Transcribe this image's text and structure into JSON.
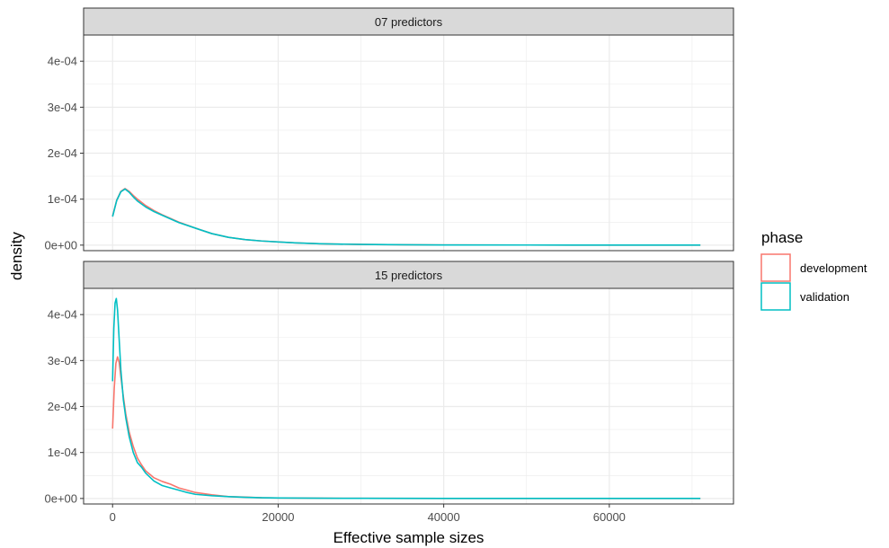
{
  "chart_data": {
    "type": "line",
    "xlabel": "Effective sample sizes",
    "ylabel": "density",
    "xlim": [
      -3500,
      75000
    ],
    "ylim": [
      -1.2e-05,
      0.000457
    ],
    "x_ticks": [
      0,
      20000,
      40000,
      60000
    ],
    "x_tick_labels": [
      "0",
      "20000",
      "40000",
      "60000"
    ],
    "y_ticks": [
      0,
      0.0001,
      0.0002,
      0.0003,
      0.0004
    ],
    "y_tick_labels": [
      "0e+00",
      "1e-04",
      "2e-04",
      "3e-04",
      "4e-04"
    ],
    "grid": true,
    "legend": {
      "title": "phase",
      "position": "right",
      "entries": [
        {
          "name": "development",
          "color": "#F8766D"
        },
        {
          "name": "validation",
          "color": "#00BFC4"
        }
      ]
    },
    "panels": [
      {
        "strip": "07 predictors",
        "series": [
          {
            "name": "development",
            "color": "#F8766D",
            "x": [
              0,
              500,
              1000,
              1500,
              2000,
              2500,
              3000,
              4000,
              5000,
              6000,
              8000,
              10000,
              12000,
              14000,
              16000,
              18000,
              20000,
              22000,
              25000,
              30000,
              35000,
              40000,
              50000,
              60000,
              71000
            ],
            "y": [
              6.3e-05,
              9.8e-05,
              0.000117,
              0.000123,
              0.000117,
              0.000108,
              0.0001,
              8.6e-05,
              7.5e-05,
              6.6e-05,
              5e-05,
              3.7e-05,
              2.5e-05,
              1.7e-05,
              1.2e-05,
              9e-06,
              7e-06,
              5e-06,
              3e-06,
              1.5e-06,
              8e-07,
              4e-07,
              2e-07,
              1e-07,
              1e-07
            ]
          },
          {
            "name": "validation",
            "color": "#00BFC4",
            "x": [
              0,
              500,
              1000,
              1500,
              2000,
              2500,
              3000,
              4000,
              5000,
              6000,
              8000,
              10000,
              12000,
              14000,
              16000,
              18000,
              20000,
              22000,
              25000,
              30000,
              35000,
              40000,
              50000,
              60000,
              71000
            ],
            "y": [
              6.2e-05,
              9.7e-05,
              0.000116,
              0.000122,
              0.000115,
              0.000105,
              9.6e-05,
              8.3e-05,
              7.3e-05,
              6.5e-05,
              4.9e-05,
              3.7e-05,
              2.5e-05,
              1.7e-05,
              1.2e-05,
              9e-06,
              7e-06,
              5e-06,
              3e-06,
              1.5e-06,
              8e-07,
              4e-07,
              2e-07,
              1e-07,
              1e-07
            ]
          }
        ]
      },
      {
        "strip": "15 predictors",
        "series": [
          {
            "name": "development",
            "color": "#F8766D",
            "x": [
              0,
              200,
              400,
              600,
              800,
              1000,
              1300,
              1600,
              2000,
              2500,
              3000,
              3500,
              4000,
              5000,
              6000,
              7000,
              8000,
              9000,
              10000,
              12000,
              14000,
              16000,
              18000,
              20000,
              25000,
              30000,
              40000,
              50000,
              60000,
              71000
            ],
            "y": [
              0.000152,
              0.00024,
              0.000294,
              0.000308,
              0.000296,
              0.000265,
              0.000222,
              0.000183,
              0.000145,
              0.000113,
              8.8e-05,
              7.3e-05,
              6e-05,
              4.5e-05,
              3.7e-05,
              3.1e-05,
              2.3e-05,
              1.8e-05,
              1.3e-05,
              8e-06,
              4e-06,
              3e-06,
              1.5e-06,
              1e-06,
              5e-07,
              3e-07,
              1e-07,
              1e-07,
              1e-07,
              1e-07
            ]
          },
          {
            "name": "validation",
            "color": "#00BFC4",
            "x": [
              0,
              150,
              300,
              450,
              600,
              800,
              1000,
              1300,
              1600,
              2000,
              2500,
              3000,
              3500,
              4000,
              5000,
              6000,
              7000,
              8000,
              9000,
              10000,
              12000,
              14000,
              16000,
              18000,
              20000,
              25000,
              30000,
              40000,
              50000,
              60000,
              71000
            ],
            "y": [
              0.000255,
              0.00037,
              0.000425,
              0.000435,
              0.00041,
              0.000345,
              0.00028,
              0.000215,
              0.000175,
              0.000135,
              0.0001,
              7.8e-05,
              6.8e-05,
              5.5e-05,
              3.8e-05,
              2.8e-05,
              2.3e-05,
              1.8e-05,
              1.3e-05,
              9e-06,
              6e-06,
              4e-06,
              2.5e-06,
              1.5e-06,
              1e-06,
              5e-07,
              3e-07,
              1e-07,
              1e-07,
              1e-07,
              1e-07
            ]
          }
        ]
      }
    ]
  }
}
